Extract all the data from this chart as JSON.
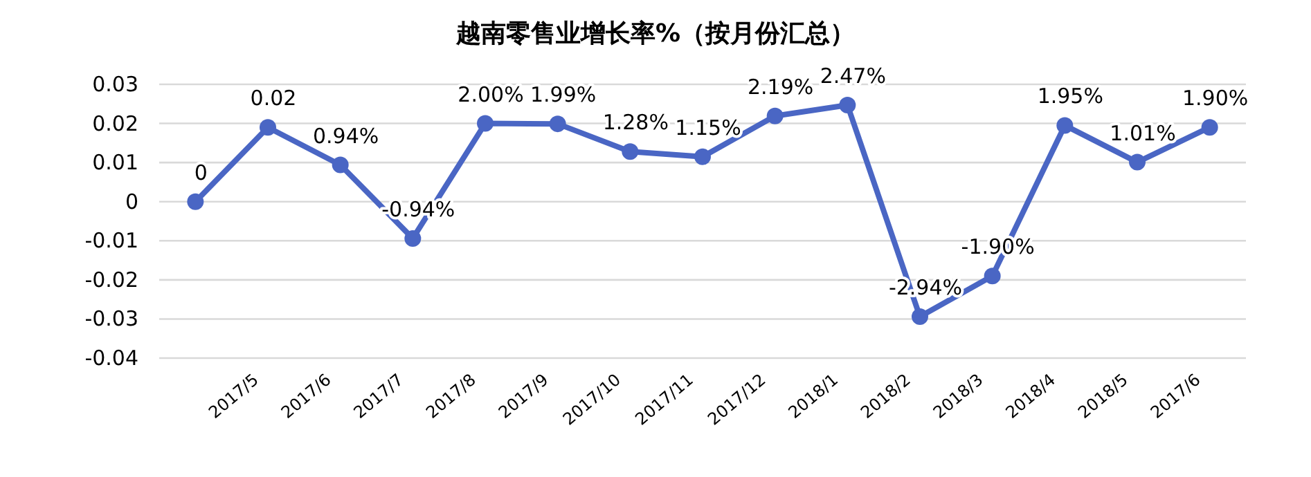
{
  "chart_data": {
    "type": "line",
    "title": "越南零售业增长率%（按月份汇总）",
    "categories": [
      null,
      "2017/5",
      "2017/6",
      "2017/7",
      "2017/8",
      "2017/9",
      "2017/10",
      "2017/11",
      "2017/12",
      "2018/1",
      "2018/2",
      "2018/3",
      "2018/4",
      "2018/5",
      "2017/6"
    ],
    "series": [
      {
        "color": "#4a66c4",
        "values": [
          0,
          0.019,
          0.0094,
          -0.0094,
          0.02,
          0.0199,
          0.0128,
          0.0115,
          0.0219,
          0.0247,
          -0.0294,
          -0.019,
          0.0195,
          0.0101,
          0.019
        ],
        "value_labels": [
          "0",
          "0.02",
          "0.94%",
          "-0.94%",
          "2.00%",
          "1.99%",
          "1.28%",
          "1.15%",
          "2.19%",
          "2.47%",
          "-2.94%",
          "-1.90%",
          "1.95%",
          "1.01%",
          "1.90%"
        ]
      }
    ],
    "ylim": [
      -0.04,
      0.03
    ],
    "yticks": [
      -0.04,
      -0.03,
      -0.02,
      -0.01,
      0,
      0.01,
      0.02,
      0.03
    ],
    "grid": "y",
    "marker": "circle"
  }
}
